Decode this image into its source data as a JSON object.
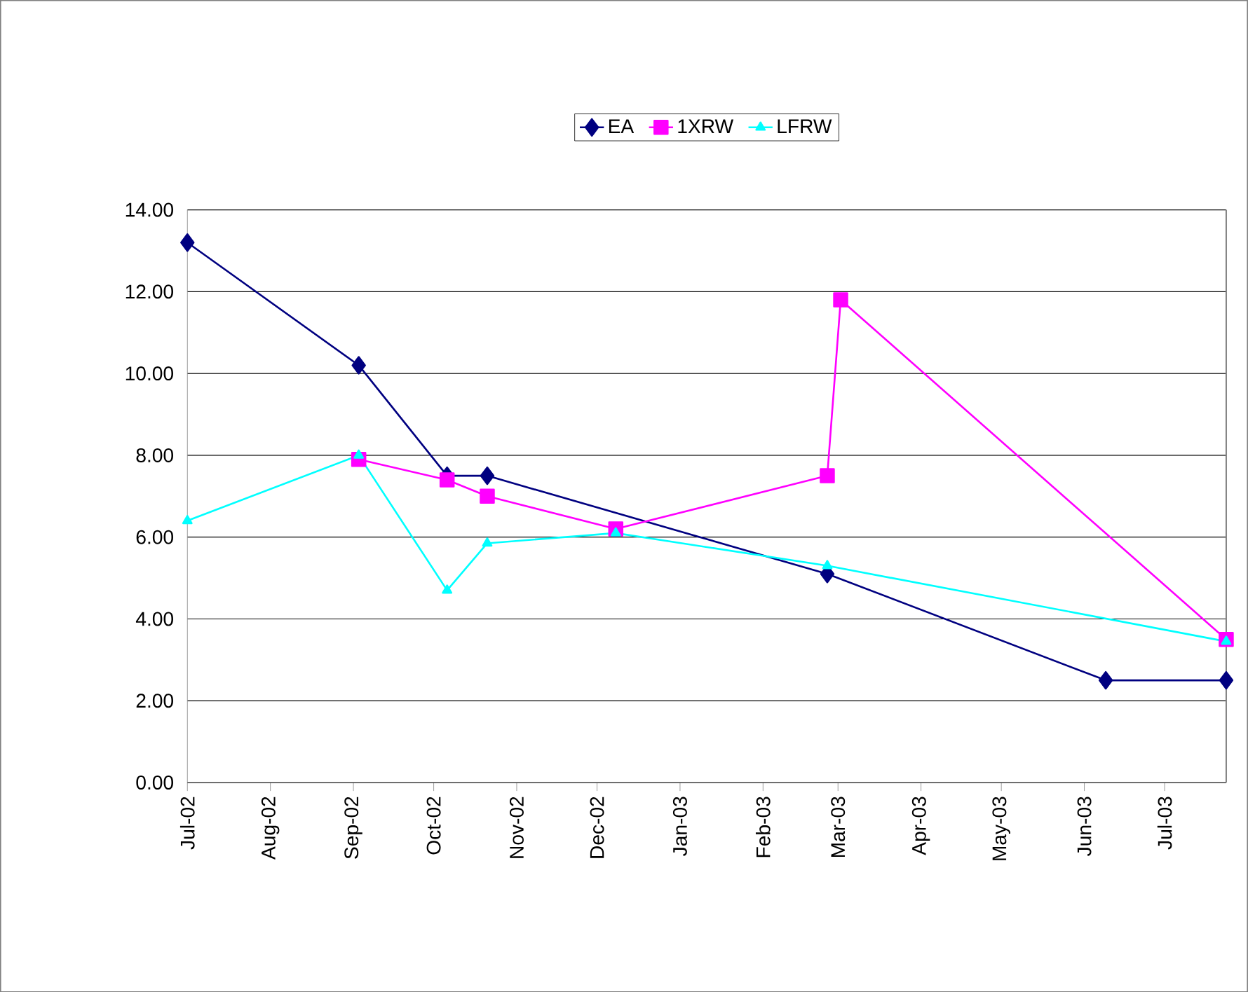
{
  "chart_data": {
    "type": "line",
    "xlim": [
      "2002-07-01",
      "2003-07-24"
    ],
    "xticks": [
      {
        "value": "2002-07-01",
        "label": "Jul-02"
      },
      {
        "value": "2002-08-01",
        "label": "Aug-02"
      },
      {
        "value": "2002-09-01",
        "label": "Sep-02"
      },
      {
        "value": "2002-10-01",
        "label": "Oct-02"
      },
      {
        "value": "2002-11-01",
        "label": "Nov-02"
      },
      {
        "value": "2002-12-01",
        "label": "Dec-02"
      },
      {
        "value": "2003-01-01",
        "label": "Jan-03"
      },
      {
        "value": "2003-02-01",
        "label": "Feb-03"
      },
      {
        "value": "2003-03-01",
        "label": "Mar-03"
      },
      {
        "value": "2003-04-01",
        "label": "Apr-03"
      },
      {
        "value": "2003-05-01",
        "label": "May-03"
      },
      {
        "value": "2003-06-01",
        "label": "Jun-03"
      },
      {
        "value": "2003-07-01",
        "label": "Jul-03"
      }
    ],
    "ylim": [
      0,
      14
    ],
    "yticks": [
      {
        "value": 0,
        "label": "0.00"
      },
      {
        "value": 2,
        "label": "2.00"
      },
      {
        "value": 4,
        "label": "4.00"
      },
      {
        "value": 6,
        "label": "6.00"
      },
      {
        "value": 8,
        "label": "8.00"
      },
      {
        "value": 10,
        "label": "10.00"
      },
      {
        "value": 12,
        "label": "12.00"
      },
      {
        "value": 14,
        "label": "14.00"
      }
    ],
    "grid": "y",
    "legend": "top",
    "line_style": "solid",
    "series": [
      {
        "name": "EA",
        "color": "#000080",
        "marker": "diamond",
        "x": [
          "2002-07-01",
          "2002-09-03",
          "2002-10-06",
          "2002-10-21",
          "2003-02-25",
          "2003-06-09",
          "2003-07-24"
        ],
        "values": [
          13.2,
          10.2,
          7.5,
          7.5,
          5.1,
          2.5,
          2.5
        ]
      },
      {
        "name": "1XRW",
        "color": "#ff00ff",
        "marker": "square",
        "x": [
          "2002-09-03",
          "2002-10-06",
          "2002-10-21",
          "2002-12-08",
          "2003-02-25",
          "2003-03-02",
          "2003-07-24"
        ],
        "values": [
          7.9,
          7.4,
          7.0,
          6.2,
          7.5,
          11.8,
          3.5
        ]
      },
      {
        "name": "LFRW",
        "color": "#00ffff",
        "marker": "triangle",
        "x": [
          "2002-07-01",
          "2002-09-03",
          "2002-10-06",
          "2002-10-21",
          "2002-12-08",
          "2003-02-25",
          "2003-07-24"
        ],
        "values": [
          6.4,
          8.0,
          4.7,
          5.85,
          6.1,
          5.3,
          3.45
        ]
      }
    ]
  }
}
